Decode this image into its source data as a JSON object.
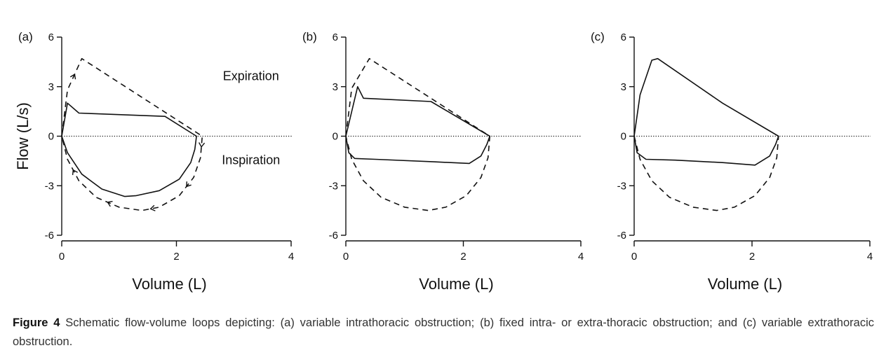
{
  "chart_data": [
    {
      "type": "line",
      "panel_label": "(a)",
      "xlabel": "Volume (L)",
      "ylabel": "Flow (L/s)",
      "xlim": [
        0,
        4
      ],
      "ylim": [
        -6,
        6
      ],
      "xticks": [
        0,
        2,
        4
      ],
      "yticks": [
        -6,
        -3,
        0,
        3,
        6
      ],
      "grid": false,
      "baseline": 0,
      "annotations": [
        {
          "text": "Expiration",
          "x": 3.3,
          "y": 3.4
        },
        {
          "text": "Inspiration",
          "x": 3.3,
          "y": -1.7
        }
      ],
      "series": [
        {
          "style": "solid",
          "x": [
            0,
            0.1,
            0.3,
            1.8,
            2.35,
            2.32,
            2.25,
            2.05,
            1.7,
            1.3,
            1.1,
            0.7,
            0.35,
            0.1,
            0
          ],
          "y": [
            0,
            2.0,
            1.4,
            1.2,
            0,
            -0.8,
            -1.6,
            -2.6,
            -3.3,
            -3.6,
            -3.65,
            -3.2,
            -2.3,
            -1.0,
            0
          ]
        },
        {
          "style": "dashed",
          "arrows": true,
          "x": [
            0,
            0.1,
            0.35,
            2.45,
            2.42,
            2.3,
            2.05,
            1.7,
            1.4,
            1.0,
            0.6,
            0.3,
            0.1,
            0
          ],
          "y": [
            0,
            2.8,
            4.7,
            0,
            -1.3,
            -2.5,
            -3.6,
            -4.3,
            -4.5,
            -4.3,
            -3.7,
            -2.7,
            -1.4,
            0
          ]
        }
      ]
    },
    {
      "type": "line",
      "panel_label": "(b)",
      "xlabel": "Volume (L)",
      "ylabel": "",
      "xlim": [
        0,
        4
      ],
      "ylim": [
        -6,
        6
      ],
      "xticks": [
        0,
        2,
        4
      ],
      "yticks": [
        -6,
        -3,
        0,
        3,
        6
      ],
      "grid": false,
      "baseline": 0,
      "series": [
        {
          "style": "solid",
          "x": [
            0,
            0.2,
            0.3,
            1.45,
            2.45,
            2.4,
            2.3,
            2.1,
            1.5,
            0.5,
            0.15,
            0.05,
            0
          ],
          "y": [
            0,
            3.0,
            2.3,
            2.1,
            0,
            -0.5,
            -1.2,
            -1.65,
            -1.55,
            -1.4,
            -1.35,
            -1.0,
            0
          ]
        },
        {
          "style": "dashed",
          "x": [
            0,
            0.1,
            0.4,
            2.45,
            2.42,
            2.3,
            2.05,
            1.7,
            1.4,
            1.0,
            0.6,
            0.3,
            0.1,
            0
          ],
          "y": [
            0,
            2.9,
            4.7,
            0,
            -1.3,
            -2.5,
            -3.6,
            -4.3,
            -4.5,
            -4.3,
            -3.7,
            -2.7,
            -1.4,
            0
          ]
        }
      ]
    },
    {
      "type": "line",
      "panel_label": "(c)",
      "xlabel": "Volume (L)",
      "ylabel": "",
      "xlim": [
        0,
        4
      ],
      "ylim": [
        -6,
        6
      ],
      "xticks": [
        0,
        2,
        4
      ],
      "yticks": [
        -6,
        -3,
        0,
        3,
        6
      ],
      "grid": false,
      "baseline": 0,
      "series": [
        {
          "style": "solid",
          "x": [
            0,
            0.1,
            0.3,
            0.4,
            1.5,
            2.45,
            2.4,
            2.3,
            2.05,
            1.5,
            0.7,
            0.2,
            0.05,
            0
          ],
          "y": [
            0,
            2.5,
            4.6,
            4.7,
            2.0,
            0,
            -0.5,
            -1.2,
            -1.75,
            -1.6,
            -1.45,
            -1.4,
            -1.0,
            0
          ]
        },
        {
          "style": "dashed",
          "x": [
            0,
            0.1,
            0.3,
            0.6,
            1.0,
            1.4,
            1.7,
            2.05,
            2.3,
            2.42,
            2.45
          ],
          "y": [
            0,
            -1.4,
            -2.7,
            -3.7,
            -4.3,
            -4.5,
            -4.3,
            -3.6,
            -2.5,
            -1.3,
            0
          ]
        }
      ]
    }
  ],
  "caption": {
    "label": "Figure 4",
    "text": "Schematic flow-volume loops depicting: (a) variable intrathoracic obstruction; (b) fixed intra- or extra-thoracic obstruction; and (c) variable extrathoracic obstruction."
  }
}
